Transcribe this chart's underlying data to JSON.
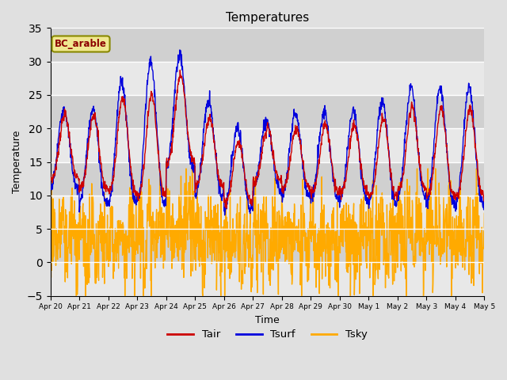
{
  "title": "Temperatures",
  "xlabel": "Time",
  "ylabel": "Temperature",
  "annotation": "BC_arable",
  "ylim": [
    -5,
    35
  ],
  "fig_bg": "#e0e0e0",
  "plot_bg": "#e0e0e0",
  "line_colors": {
    "Tair": "#cc0000",
    "Tsurf": "#0000dd",
    "Tsky": "#ffaa00"
  },
  "xtick_labels": [
    "Apr 20",
    "Apr 21",
    "Apr 22",
    "Apr 23",
    "Apr 24",
    "Apr 25",
    "Apr 26",
    "Apr 27",
    "Apr 28",
    "Apr 29",
    "Apr 30",
    "May 1",
    "May 2",
    "May 3",
    "May 4",
    "May 5"
  ],
  "n_days": 15,
  "pts_per_day": 96,
  "tair_min": [
    12.5,
    11.0,
    10.5,
    10.0,
    15.0,
    11.5,
    9.0,
    12.0,
    11.0,
    10.5,
    10.5,
    10.0,
    11.0,
    10.0,
    10.0
  ],
  "tair_amp": [
    9.5,
    11.0,
    14.0,
    15.0,
    13.0,
    10.0,
    9.0,
    8.0,
    9.0,
    10.0,
    10.0,
    11.5,
    12.0,
    13.0,
    13.0
  ],
  "tsurf_min": [
    11.0,
    9.0,
    9.0,
    9.0,
    14.0,
    10.0,
    8.0,
    11.0,
    10.0,
    9.5,
    9.5,
    9.0,
    10.0,
    9.0,
    9.0
  ],
  "tsurf_amp": [
    12.0,
    14.0,
    18.0,
    21.0,
    17.0,
    14.0,
    12.0,
    10.0,
    12.0,
    13.0,
    13.0,
    15.0,
    16.0,
    17.0,
    17.0
  ],
  "tsky_base": [
    2.5,
    1.0,
    1.5,
    2.5,
    4.0,
    2.5,
    1.5,
    2.0,
    1.5,
    1.5,
    2.0,
    2.0,
    2.5,
    2.0,
    2.0
  ],
  "tsky_amp": [
    3.5,
    5.0,
    4.0,
    4.0,
    3.5,
    3.0,
    2.5,
    3.0,
    2.5,
    2.5,
    3.0,
    3.5,
    3.5,
    3.5,
    3.5
  ],
  "tsky_noise": 3.5
}
